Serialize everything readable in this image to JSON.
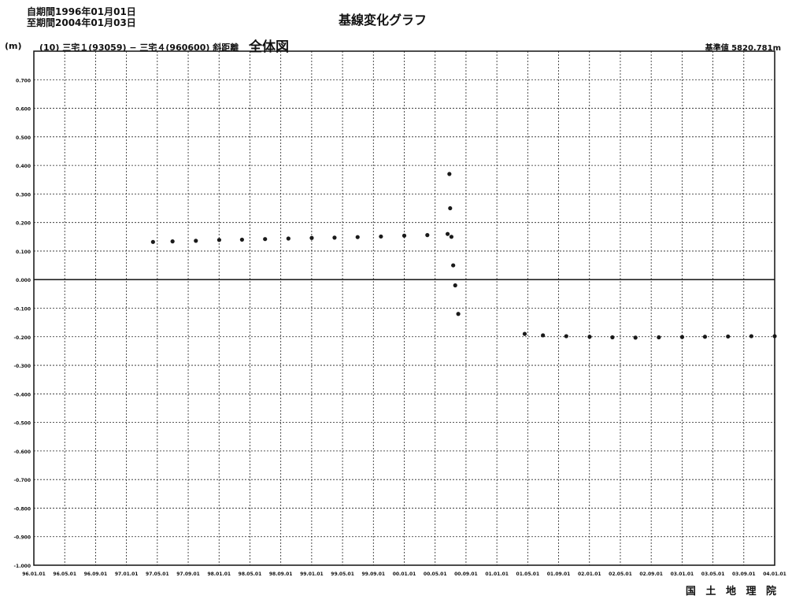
{
  "header": {
    "period_start": "自期間1996年01月01日",
    "period_end": "至期間2004年01月03日",
    "title": "基線変化グラフ",
    "unit": "(m)",
    "baseline_pair": "(10) 三宅１(93059) − 三宅４(960600) 斜距離",
    "view_label": "全体図",
    "reference_value": "基準値 5820.781m",
    "organization": "国 土 地 理 院"
  },
  "chart_data": {
    "type": "scatter",
    "title": "基線変化グラフ",
    "xlabel": "",
    "ylabel": "(m)",
    "ylim": [
      -1.0,
      0.8
    ],
    "grid": true,
    "yticks": [
      0.7,
      0.6,
      0.5,
      0.4,
      0.3,
      0.2,
      0.1,
      0.0,
      -0.1,
      -0.2,
      -0.3,
      -0.4,
      -0.5,
      -0.6,
      -0.7,
      -0.8,
      -0.9,
      -1.0
    ],
    "ytick_labels": [
      "0.700",
      "0.600",
      "0.500",
      "0.400",
      "0.300",
      "0.200",
      "0.100",
      "0.000",
      "-0.100",
      "-0.200",
      "-0.300",
      "-0.400",
      "-0.500",
      "-0.600",
      "-0.700",
      "-0.800",
      "-0.900",
      "-1.000"
    ],
    "xtick_labels": [
      "96.01.01",
      "96.05.01",
      "96.09.01",
      "97.01.01",
      "97.05.01",
      "97.09.01",
      "98.01.01",
      "98.05.01",
      "98.09.01",
      "99.01.01",
      "99.05.01",
      "99.09.01",
      "00.01.01",
      "00.05.01",
      "00.09.01",
      "01.01.01",
      "01.05.01",
      "01.09.01",
      "02.01.01",
      "02.05.01",
      "02.09.01",
      "03.01.01",
      "03.05.01",
      "03.09.01",
      "04.01.01"
    ],
    "series": [
      {
        "color": "#1a1a1a",
        "points": [
          {
            "x": "1997-04-15",
            "y": 0.132
          },
          {
            "x": "1997-07-01",
            "y": 0.134
          },
          {
            "x": "1997-10-01",
            "y": 0.136
          },
          {
            "x": "1998-01-01",
            "y": 0.139
          },
          {
            "x": "1998-04-01",
            "y": 0.14
          },
          {
            "x": "1998-07-01",
            "y": 0.142
          },
          {
            "x": "1998-10-01",
            "y": 0.144
          },
          {
            "x": "1999-01-01",
            "y": 0.146
          },
          {
            "x": "1999-04-01",
            "y": 0.147
          },
          {
            "x": "1999-07-01",
            "y": 0.149
          },
          {
            "x": "1999-10-01",
            "y": 0.151
          },
          {
            "x": "2000-01-01",
            "y": 0.154
          },
          {
            "x": "2000-04-01",
            "y": 0.156
          },
          {
            "x": "2000-06-20",
            "y": 0.16
          },
          {
            "x": "2000-06-27",
            "y": 0.37
          },
          {
            "x": "2000-06-30",
            "y": 0.25
          },
          {
            "x": "2000-07-05",
            "y": 0.15
          },
          {
            "x": "2000-07-12",
            "y": 0.05
          },
          {
            "x": "2000-07-20",
            "y": -0.02
          },
          {
            "x": "2000-08-01",
            "y": -0.12
          },
          {
            "x": "2001-04-20",
            "y": -0.19
          },
          {
            "x": "2001-07-01",
            "y": -0.195
          },
          {
            "x": "2001-10-01",
            "y": -0.198
          },
          {
            "x": "2002-01-01",
            "y": -0.2
          },
          {
            "x": "2002-04-01",
            "y": -0.202
          },
          {
            "x": "2002-07-01",
            "y": -0.203
          },
          {
            "x": "2002-10-01",
            "y": -0.202
          },
          {
            "x": "2003-01-01",
            "y": -0.201
          },
          {
            "x": "2003-04-01",
            "y": -0.2
          },
          {
            "x": "2003-07-01",
            "y": -0.199
          },
          {
            "x": "2003-10-01",
            "y": -0.198
          },
          {
            "x": "2004-01-01",
            "y": -0.198
          }
        ]
      }
    ]
  }
}
